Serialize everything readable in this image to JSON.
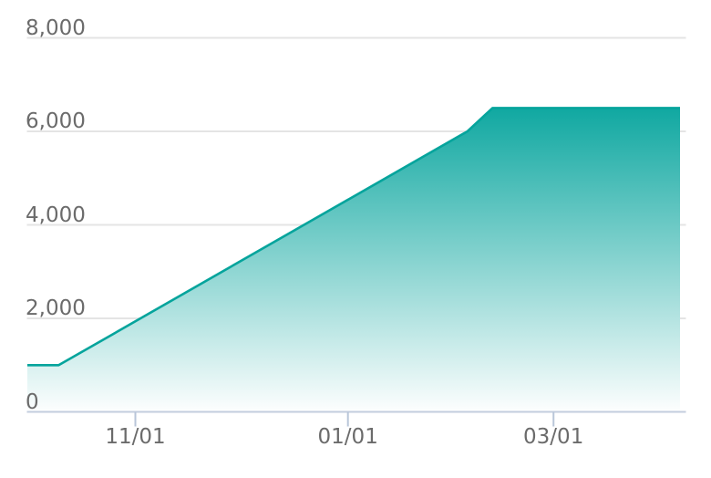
{
  "chart_data": {
    "type": "area",
    "title": "",
    "xlabel": "",
    "ylabel": "",
    "x_axis": {
      "tick_labels": [
        "11/01",
        "01/01",
        "03/01"
      ],
      "tick_days": [
        31,
        92,
        151
      ],
      "domain_days": [
        0,
        189
      ],
      "axis_line": true,
      "tick_marks": true
    },
    "y_axis": {
      "tick_labels": [
        "8,000",
        "6,000",
        "4,000",
        "2,000",
        "0"
      ],
      "tick_values": [
        8000,
        6000,
        4000,
        2000,
        0
      ],
      "range": [
        0,
        8000
      ],
      "gridlines": true
    },
    "series": [
      {
        "name": "value",
        "points": [
          {
            "date": "10/01",
            "day": 0,
            "value": 1000
          },
          {
            "date": "10/10",
            "day": 9,
            "value": 1000
          },
          {
            "date": "02/04",
            "day": 126.3,
            "value": 6000
          },
          {
            "date": "02/11",
            "day": 133.5,
            "value": 6500
          },
          {
            "date": "04/06",
            "day": 187.3,
            "value": 6500
          }
        ]
      }
    ],
    "legend": "none",
    "colors": {
      "line": "#05a49c",
      "fill_top": "#10a8a1",
      "fill_bottom": "#fdfefe",
      "gridline": "#e4e4e4",
      "axis_line": "#c3cdde",
      "tick_mark": "#b9c6d9",
      "label": "#6b6b6b"
    }
  }
}
